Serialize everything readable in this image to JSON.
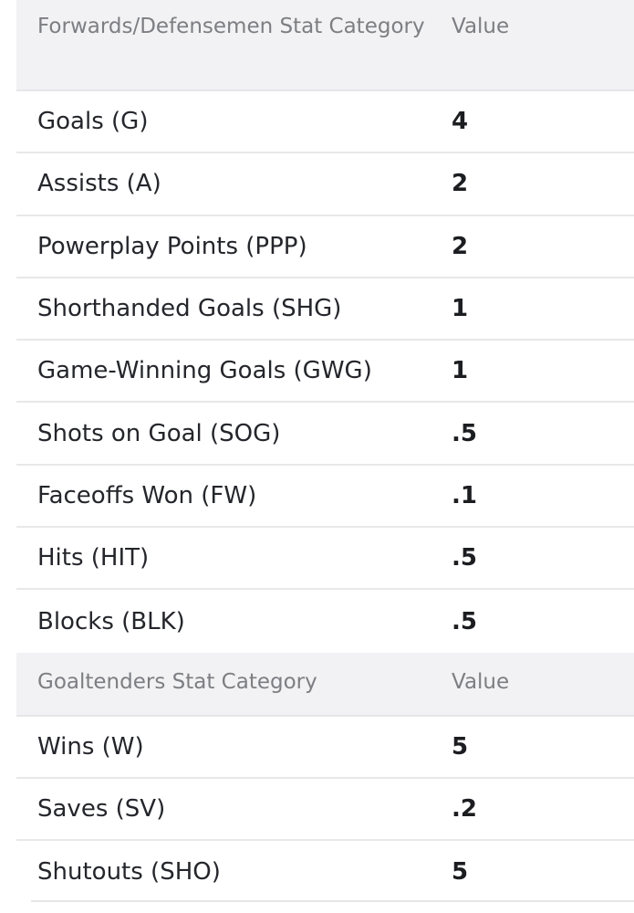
{
  "skater_table": {
    "header": {
      "category": "Forwards/Defensemen Stat Category",
      "value": "Value"
    },
    "rows": [
      {
        "category": "Goals (G)",
        "value": "4"
      },
      {
        "category": "Assists (A)",
        "value": "2"
      },
      {
        "category": "Powerplay Points (PPP)",
        "value": "2"
      },
      {
        "category": "Shorthanded Goals (SHG)",
        "value": "1"
      },
      {
        "category": "Game-Winning Goals (GWG)",
        "value": "1"
      },
      {
        "category": "Shots on Goal (SOG)",
        "value": ".5"
      },
      {
        "category": "Faceoffs Won (FW)",
        "value": ".1"
      },
      {
        "category": "Hits (HIT)",
        "value": ".5"
      },
      {
        "category": "Blocks (BLK)",
        "value": ".5"
      }
    ]
  },
  "goalie_table": {
    "header": {
      "category": "Goaltenders Stat Category",
      "value": "Value"
    },
    "rows": [
      {
        "category": "Wins (W)",
        "value": "5"
      },
      {
        "category": "Saves (SV)",
        "value": ".2"
      },
      {
        "category": "Shutouts (SHO)",
        "value": "5"
      }
    ]
  }
}
